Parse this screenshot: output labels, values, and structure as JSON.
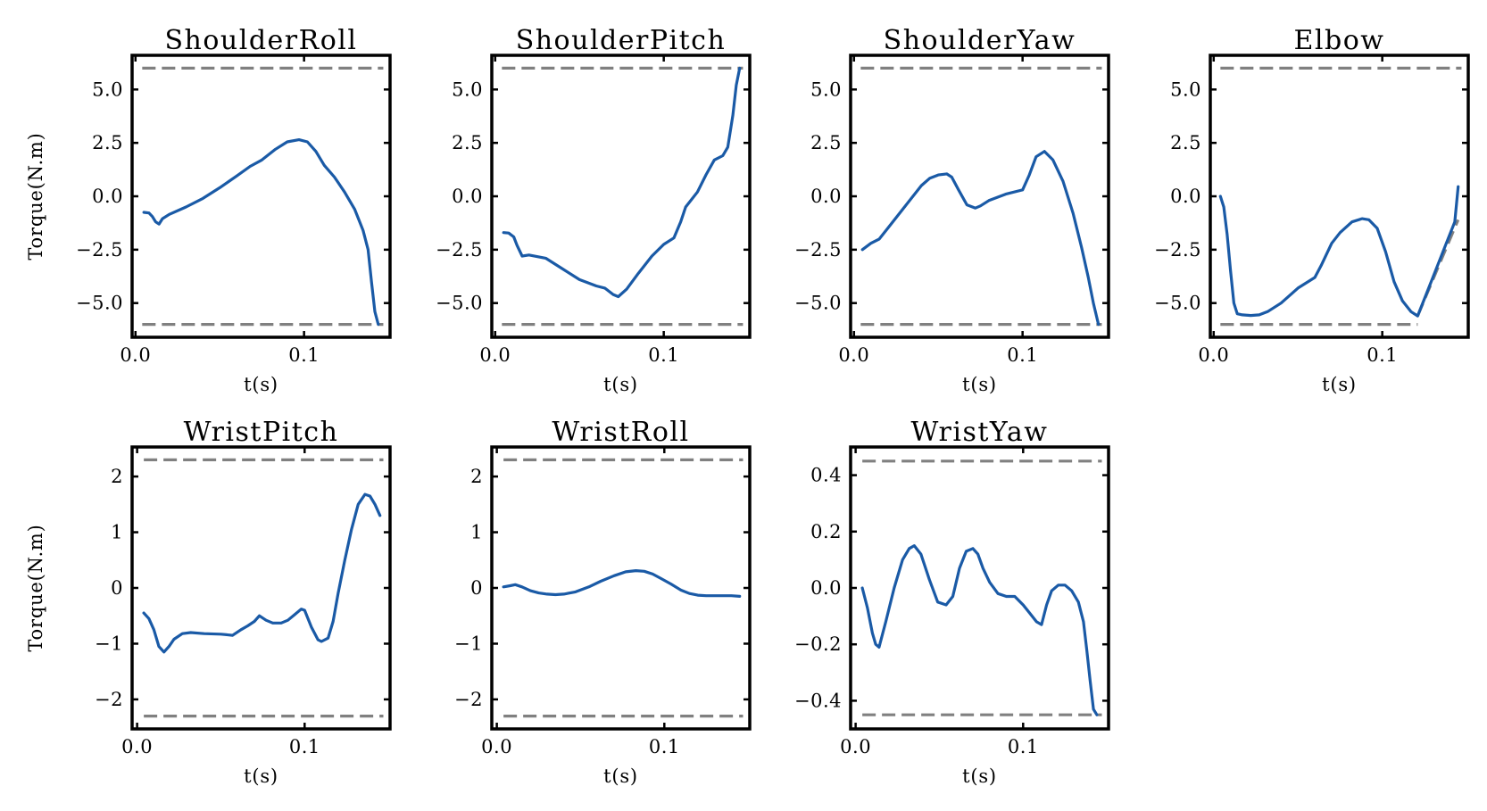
{
  "colors": {
    "series": "#1a5aa6",
    "limit": "#808080",
    "axes": "#000000"
  },
  "chart_data": [
    {
      "type": "line",
      "title": "ShoulderRoll",
      "xlabel": "t(s)",
      "ylabel": "Torque(N.m)",
      "xlim": [
        -0.002,
        0.151
      ],
      "ylim": [
        -6.6,
        6.6
      ],
      "xticks": [
        0.0,
        0.1
      ],
      "xtick_labels": [
        "0.0",
        "0.1"
      ],
      "yticks": [
        5.0,
        2.5,
        0.0,
        -2.5,
        -5.0
      ],
      "ytick_labels": [
        "5.0",
        "2.5",
        "0.0",
        "−2.5",
        "−5.0"
      ],
      "limits": [
        6.0,
        -6.0
      ],
      "limit_style": "dashed",
      "grid": false,
      "series": [
        {
          "x": [
            0.005,
            0.008,
            0.01,
            0.012,
            0.014,
            0.016,
            0.02,
            0.03,
            0.04,
            0.05,
            0.06,
            0.068,
            0.075,
            0.083,
            0.09,
            0.097,
            0.102,
            0.107,
            0.112,
            0.118,
            0.124,
            0.13,
            0.135,
            0.138,
            0.14,
            0.142,
            0.144
          ],
          "y": [
            -0.75,
            -0.78,
            -0.95,
            -1.2,
            -1.3,
            -1.05,
            -0.85,
            -0.5,
            -0.1,
            0.4,
            0.95,
            1.4,
            1.7,
            2.2,
            2.55,
            2.65,
            2.55,
            2.1,
            1.45,
            0.9,
            0.2,
            -0.6,
            -1.6,
            -2.5,
            -4.0,
            -5.4,
            -6.0
          ]
        }
      ]
    },
    {
      "type": "line",
      "title": "ShoulderPitch",
      "xlabel": "t(s)",
      "ylabel": "",
      "xlim": [
        -0.002,
        0.151
      ],
      "ylim": [
        -6.6,
        6.6
      ],
      "xticks": [
        0.0,
        0.1
      ],
      "xtick_labels": [
        "0.0",
        "0.1"
      ],
      "yticks": [
        5.0,
        2.5,
        0.0,
        -2.5,
        -5.0
      ],
      "ytick_labels": [
        "5.0",
        "2.5",
        "0.0",
        "−2.5",
        "−5.0"
      ],
      "limits": [
        6.0,
        -6.0
      ],
      "limit_style": "dashed",
      "grid": false,
      "series": [
        {
          "x": [
            0.005,
            0.008,
            0.011,
            0.013,
            0.016,
            0.02,
            0.03,
            0.04,
            0.05,
            0.06,
            0.065,
            0.07,
            0.073,
            0.078,
            0.085,
            0.093,
            0.1,
            0.106,
            0.11,
            0.113,
            0.116,
            0.12,
            0.125,
            0.13,
            0.135,
            0.138,
            0.141,
            0.143,
            0.145
          ],
          "y": [
            -1.7,
            -1.72,
            -1.9,
            -2.3,
            -2.8,
            -2.75,
            -2.9,
            -3.4,
            -3.9,
            -4.2,
            -4.3,
            -4.6,
            -4.7,
            -4.35,
            -3.6,
            -2.8,
            -2.25,
            -1.95,
            -1.2,
            -0.5,
            -0.2,
            0.2,
            1.0,
            1.7,
            1.9,
            2.3,
            3.8,
            5.2,
            6.0
          ]
        }
      ]
    },
    {
      "type": "line",
      "title": "ShoulderYaw",
      "xlabel": "t(s)",
      "ylabel": "",
      "xlim": [
        -0.002,
        0.151
      ],
      "ylim": [
        -6.6,
        6.6
      ],
      "xticks": [
        0.0,
        0.1
      ],
      "xtick_labels": [
        "0.0",
        "0.1"
      ],
      "yticks": [
        5.0,
        2.5,
        0.0,
        -2.5,
        -5.0
      ],
      "ytick_labels": [
        "5.0",
        "2.5",
        "0.0",
        "−2.5",
        "−5.0"
      ],
      "limits": [
        6.0,
        -6.0
      ],
      "limit_style": "dashed",
      "grid": false,
      "series": [
        {
          "x": [
            0.005,
            0.01,
            0.015,
            0.02,
            0.03,
            0.04,
            0.045,
            0.05,
            0.055,
            0.058,
            0.062,
            0.067,
            0.072,
            0.075,
            0.08,
            0.09,
            0.1,
            0.104,
            0.108,
            0.113,
            0.118,
            0.124,
            0.13,
            0.135,
            0.139,
            0.142,
            0.145
          ],
          "y": [
            -2.5,
            -2.2,
            -2.0,
            -1.5,
            -0.5,
            0.5,
            0.85,
            1.0,
            1.05,
            0.9,
            0.3,
            -0.4,
            -0.55,
            -0.45,
            -0.2,
            0.1,
            0.3,
            1.0,
            1.85,
            2.1,
            1.7,
            0.7,
            -0.8,
            -2.4,
            -3.8,
            -5.0,
            -6.0
          ]
        }
      ]
    },
    {
      "type": "line",
      "title": "Elbow",
      "xlabel": "t(s)",
      "ylabel": "",
      "xlim": [
        -0.002,
        0.151
      ],
      "ylim": [
        -6.6,
        6.6
      ],
      "xticks": [
        0.0,
        0.1
      ],
      "xtick_labels": [
        "0.0",
        "0.1"
      ],
      "yticks": [
        5.0,
        2.5,
        0.0,
        -2.5,
        -5.0
      ],
      "ytick_labels": [
        "5.0",
        "2.5",
        "0.0",
        "−2.5",
        "−5.0"
      ],
      "limits": [
        6.0,
        -6.0
      ],
      "limit_style": "dashed",
      "limit_extension": {
        "x": [
          0.121,
          0.145
        ],
        "y": [
          -5.6,
          -1.1
        ]
      },
      "grid": false,
      "series": [
        {
          "x": [
            0.004,
            0.006,
            0.008,
            0.01,
            0.012,
            0.014,
            0.017,
            0.022,
            0.027,
            0.032,
            0.04,
            0.05,
            0.06,
            0.064,
            0.07,
            0.075,
            0.082,
            0.088,
            0.092,
            0.097,
            0.102,
            0.107,
            0.112,
            0.117,
            0.121,
            0.126,
            0.132,
            0.138,
            0.143,
            0.145
          ],
          "y": [
            0.0,
            -0.5,
            -1.8,
            -3.5,
            -5.0,
            -5.5,
            -5.55,
            -5.58,
            -5.55,
            -5.4,
            -5.0,
            -4.3,
            -3.8,
            -3.2,
            -2.2,
            -1.7,
            -1.2,
            -1.05,
            -1.1,
            -1.5,
            -2.6,
            -4.0,
            -4.9,
            -5.4,
            -5.6,
            -4.6,
            -3.4,
            -2.2,
            -1.2,
            0.45
          ]
        }
      ]
    },
    {
      "type": "line",
      "title": "WristPitch",
      "xlabel": "t(s)",
      "ylabel": "Torque(N.m)",
      "xlim": [
        -0.003,
        0.151
      ],
      "ylim": [
        -2.53,
        2.53
      ],
      "xticks": [
        0.0,
        0.1
      ],
      "xtick_labels": [
        "0.0",
        "0.1"
      ],
      "yticks": [
        2,
        1,
        0,
        -1,
        -2
      ],
      "ytick_labels": [
        "2",
        "1",
        "0",
        "−1",
        "−2"
      ],
      "limits": [
        2.3,
        -2.3
      ],
      "limit_style": "dashed",
      "grid": false,
      "series": [
        {
          "x": [
            0.004,
            0.007,
            0.01,
            0.013,
            0.016,
            0.019,
            0.022,
            0.027,
            0.032,
            0.04,
            0.05,
            0.057,
            0.062,
            0.066,
            0.07,
            0.073,
            0.077,
            0.081,
            0.086,
            0.09,
            0.094,
            0.098,
            0.1,
            0.104,
            0.108,
            0.11,
            0.114,
            0.117,
            0.12,
            0.124,
            0.128,
            0.132,
            0.136,
            0.139,
            0.142,
            0.145
          ],
          "y": [
            -0.45,
            -0.55,
            -0.75,
            -1.05,
            -1.15,
            -1.05,
            -0.92,
            -0.82,
            -0.8,
            -0.82,
            -0.83,
            -0.85,
            -0.75,
            -0.68,
            -0.6,
            -0.5,
            -0.58,
            -0.63,
            -0.63,
            -0.58,
            -0.48,
            -0.38,
            -0.4,
            -0.7,
            -0.93,
            -0.96,
            -0.9,
            -0.6,
            -0.1,
            0.5,
            1.05,
            1.5,
            1.68,
            1.65,
            1.5,
            1.3
          ]
        }
      ]
    },
    {
      "type": "line",
      "title": "WristRoll",
      "xlabel": "t(s)",
      "ylabel": "",
      "xlim": [
        -0.003,
        0.151
      ],
      "ylim": [
        -2.53,
        2.53
      ],
      "xticks": [
        0.0,
        0.1
      ],
      "xtick_labels": [
        "0.0",
        "0.1"
      ],
      "yticks": [
        2,
        1,
        0,
        -1,
        -2
      ],
      "ytick_labels": [
        "2",
        "1",
        "0",
        "−1",
        "−2"
      ],
      "limits": [
        2.3,
        -2.3
      ],
      "limit_style": "dashed",
      "grid": false,
      "series": [
        {
          "x": [
            0.004,
            0.008,
            0.011,
            0.015,
            0.02,
            0.025,
            0.03,
            0.035,
            0.04,
            0.047,
            0.055,
            0.062,
            0.07,
            0.077,
            0.083,
            0.088,
            0.093,
            0.098,
            0.104,
            0.11,
            0.115,
            0.12,
            0.125,
            0.13,
            0.135,
            0.14,
            0.145
          ],
          "y": [
            0.02,
            0.04,
            0.06,
            0.02,
            -0.05,
            -0.09,
            -0.11,
            -0.12,
            -0.11,
            -0.07,
            0.02,
            0.12,
            0.22,
            0.29,
            0.31,
            0.3,
            0.25,
            0.17,
            0.07,
            -0.04,
            -0.1,
            -0.13,
            -0.14,
            -0.14,
            -0.14,
            -0.14,
            -0.15
          ]
        }
      ]
    },
    {
      "type": "line",
      "title": "WristYaw",
      "xlabel": "t(s)",
      "ylabel": "",
      "xlim": [
        -0.003,
        0.151
      ],
      "ylim": [
        -0.5,
        0.5
      ],
      "xticks": [
        0.0,
        0.1
      ],
      "xtick_labels": [
        "0.0",
        "0.1"
      ],
      "yticks": [
        0.4,
        0.2,
        0.0,
        -0.2,
        -0.4
      ],
      "ytick_labels": [
        "0.4",
        "0.2",
        "0.0",
        "−0.2",
        "−0.4"
      ],
      "limits": [
        0.45,
        -0.45
      ],
      "limit_style": "dashed",
      "grid": false,
      "series": [
        {
          "x": [
            0.004,
            0.007,
            0.01,
            0.012,
            0.014,
            0.018,
            0.023,
            0.028,
            0.032,
            0.035,
            0.039,
            0.044,
            0.049,
            0.054,
            0.058,
            0.062,
            0.066,
            0.07,
            0.073,
            0.076,
            0.08,
            0.085,
            0.09,
            0.095,
            0.1,
            0.104,
            0.108,
            0.111,
            0.114,
            0.117,
            0.121,
            0.125,
            0.129,
            0.133,
            0.136,
            0.138,
            0.14,
            0.142,
            0.144
          ],
          "y": [
            0.0,
            -0.07,
            -0.16,
            -0.2,
            -0.21,
            -0.12,
            0.0,
            0.1,
            0.14,
            0.15,
            0.12,
            0.03,
            -0.05,
            -0.06,
            -0.03,
            0.07,
            0.13,
            0.14,
            0.12,
            0.07,
            0.02,
            -0.02,
            -0.03,
            -0.03,
            -0.06,
            -0.09,
            -0.12,
            -0.13,
            -0.06,
            -0.01,
            0.01,
            0.01,
            -0.01,
            -0.05,
            -0.12,
            -0.22,
            -0.33,
            -0.43,
            -0.45
          ]
        }
      ]
    }
  ]
}
